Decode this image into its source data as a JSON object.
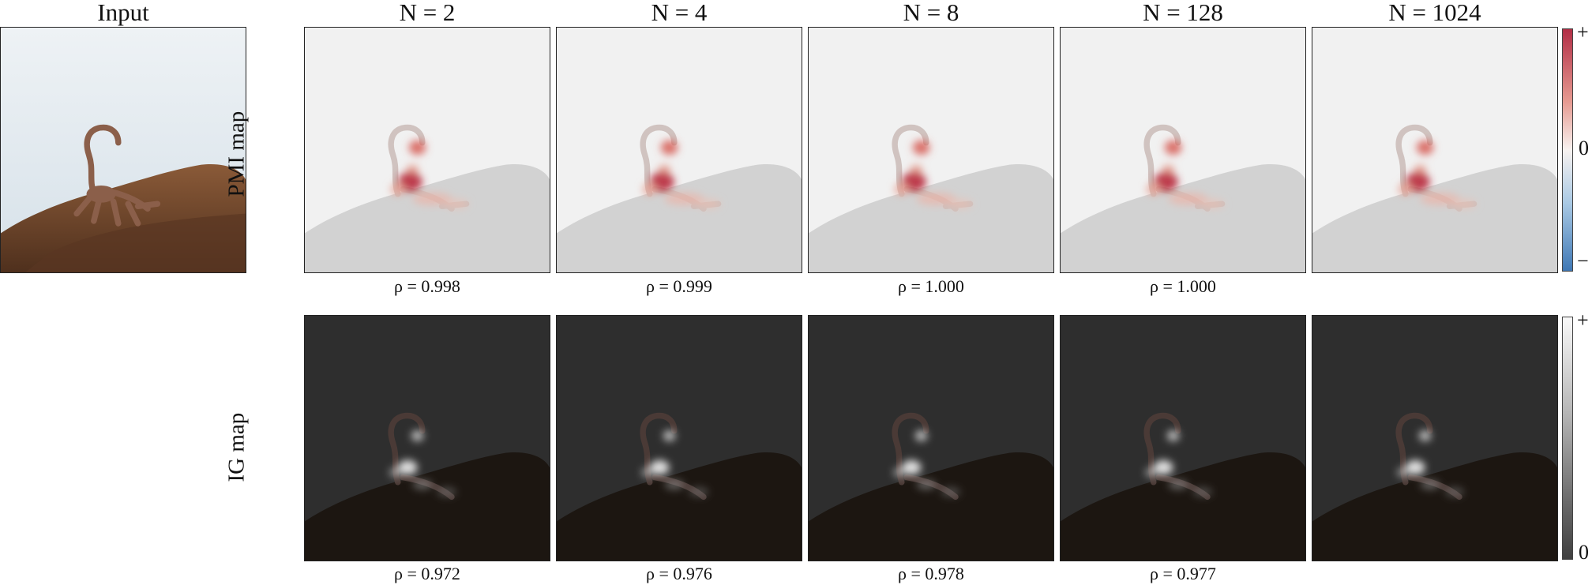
{
  "input_label": "Input",
  "columns": [
    {
      "title": "N = 2"
    },
    {
      "title": "N = 4"
    },
    {
      "title": "N = 8"
    },
    {
      "title": "N = 128"
    },
    {
      "title": "N = 1024"
    }
  ],
  "rows": [
    {
      "label": "PMI map",
      "rho": [
        "ρ = 0.998",
        "ρ = 0.999",
        "ρ = 1.000",
        "ρ = 1.000",
        ""
      ]
    },
    {
      "label": "IG map",
      "rho": [
        "ρ = 0.972",
        "ρ = 0.976",
        "ρ = 0.978",
        "ρ = 0.977",
        ""
      ]
    }
  ],
  "colorbars": {
    "pmi": {
      "top": "+",
      "mid": "0",
      "bottom": "−",
      "colors": [
        "#b22e46",
        "#f7f2f0",
        "#3f78b5"
      ]
    },
    "ig": {
      "top": "+",
      "bottom": "0",
      "colors": [
        "#f9f9f9",
        "#404040"
      ]
    }
  }
}
